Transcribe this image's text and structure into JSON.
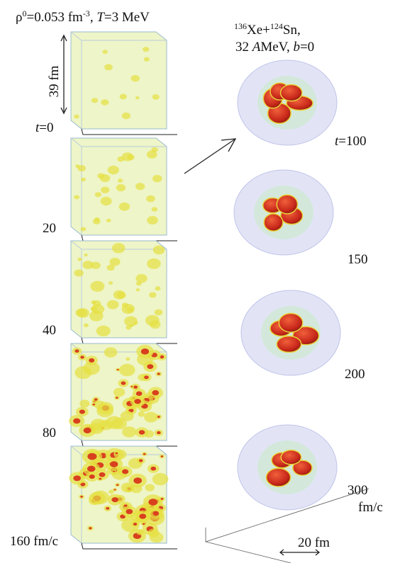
{
  "left_panel": {
    "header": [
      "ρ",
      "0",
      "=0.053 fm",
      "-3",
      ", ",
      "T",
      "=3 MeV"
    ],
    "size_label": "39 fm",
    "first_time": [
      "t",
      "=0"
    ],
    "times": [
      "20",
      "40",
      "80",
      "160 fm/c"
    ]
  },
  "right_panel": {
    "reaction": [
      "136",
      "Xe+",
      "124",
      "Sn,"
    ],
    "conditions": [
      "32 ",
      "A",
      "MeV, ",
      "b",
      "=0"
    ],
    "first_time": [
      "t",
      "=100"
    ],
    "times": [
      "150",
      "200",
      "300"
    ],
    "unit": "fm/c",
    "scale_label": "20 fm"
  }
}
